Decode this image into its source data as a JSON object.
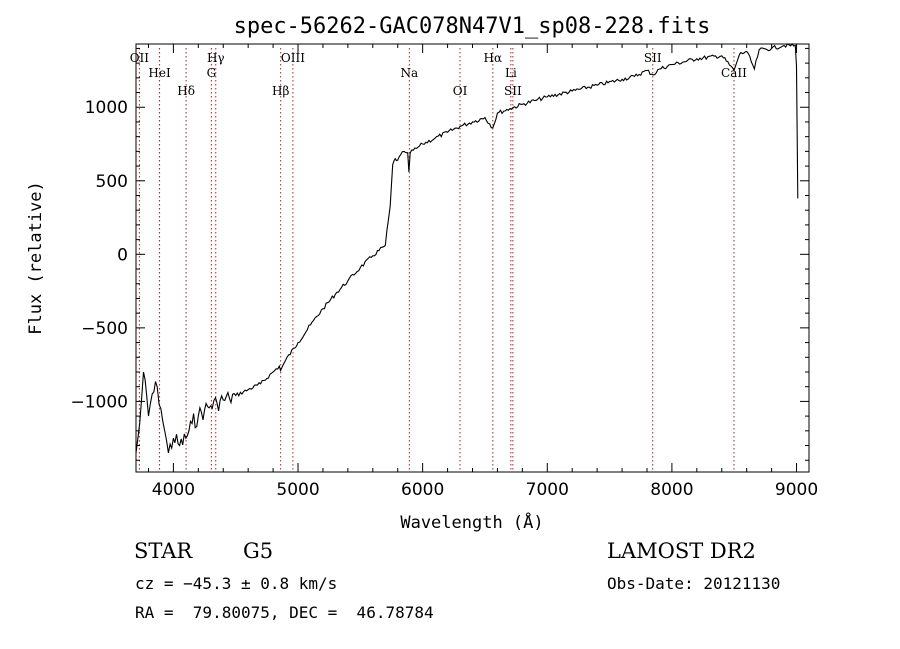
{
  "chart_data": {
    "type": "line",
    "title": "spec-56262-GAC078N47V1_sp08-228.fits",
    "xlabel": "Wavelength (Å)",
    "ylabel": "Flux (relative)",
    "xlim": [
      3700,
      9100
    ],
    "ylim": [
      -1480,
      1430
    ],
    "xticks": [
      4000,
      5000,
      6000,
      7000,
      8000,
      9000
    ],
    "yticks": [
      -1000,
      -500,
      0,
      500,
      1000
    ],
    "xtick_labels": [
      "4000",
      "5000",
      "6000",
      "7000",
      "8000",
      "9000"
    ],
    "ytick_labels": [
      "−1000",
      "−500",
      "0",
      "500",
      "1000"
    ],
    "grid": false,
    "spectrum": {
      "x": [
        3700,
        3730,
        3760,
        3800,
        3830,
        3870,
        3900,
        3930,
        3960,
        4000,
        4050,
        4100,
        4150,
        4200,
        4250,
        4300,
        4350,
        4400,
        4450,
        4500,
        4600,
        4700,
        4800,
        4850,
        4860,
        4900,
        5000,
        5100,
        5200,
        5300,
        5400,
        5500,
        5600,
        5700,
        5740,
        5760,
        5780,
        5800,
        5850,
        5880,
        5890,
        5900,
        5950,
        6000,
        6100,
        6200,
        6300,
        6400,
        6500,
        6563,
        6600,
        6700,
        6800,
        6900,
        7000,
        7200,
        7400,
        7600,
        7700,
        7800,
        7850,
        7900,
        8000,
        8200,
        8400,
        8498,
        8542,
        8600,
        8662,
        8700,
        8800,
        8900,
        8990,
        9000,
        9010
      ],
      "y": [
        -1350,
        -1150,
        -800,
        -1100,
        -950,
        -900,
        -1050,
        -1200,
        -1350,
        -1250,
        -1300,
        -1250,
        -1150,
        -1100,
        -1060,
        -1030,
        -1010,
        -990,
        -980,
        -960,
        -920,
        -880,
        -800,
        -760,
        -790,
        -720,
        -600,
        -480,
        -370,
        -270,
        -180,
        -90,
        -10,
        60,
        330,
        610,
        650,
        640,
        700,
        690,
        560,
        690,
        720,
        750,
        790,
        830,
        870,
        900,
        930,
        860,
        960,
        990,
        1020,
        1045,
        1070,
        1110,
        1150,
        1190,
        1210,
        1250,
        1220,
        1260,
        1290,
        1330,
        1350,
        1250,
        1360,
        1380,
        1260,
        1390,
        1400,
        1420,
        1420,
        1280,
        380
      ],
      "color": "#000000"
    },
    "lines": [
      {
        "name": "OII",
        "x": 3727
      },
      {
        "name": "HeI",
        "x": 3889
      },
      {
        "name": "Hδ",
        "x": 4102
      },
      {
        "name": "Hγ",
        "x": 4340
      },
      {
        "name": "G",
        "x": 4305
      },
      {
        "name": "Hβ",
        "x": 4861
      },
      {
        "name": "OIII",
        "x": 4959
      },
      {
        "name": "Na",
        "x": 5893
      },
      {
        "name": "OI",
        "x": 6300
      },
      {
        "name": "Hα",
        "x": 6563
      },
      {
        "name": "Li",
        "x": 6708
      },
      {
        "name": "SII",
        "x": 6724
      },
      {
        "name": "SII",
        "x": 7846
      },
      {
        "name": "CaII",
        "x": 8498
      }
    ],
    "line_color": "#b22222"
  },
  "info": {
    "class": "STAR",
    "subclass": "G5",
    "survey": "LAMOST DR2",
    "cz": "cz = −45.3 ± 0.8 km/s",
    "obs_date": "Obs-Date: 20121130",
    "radec": "RA =  79.80075, DEC =  46.78784"
  }
}
